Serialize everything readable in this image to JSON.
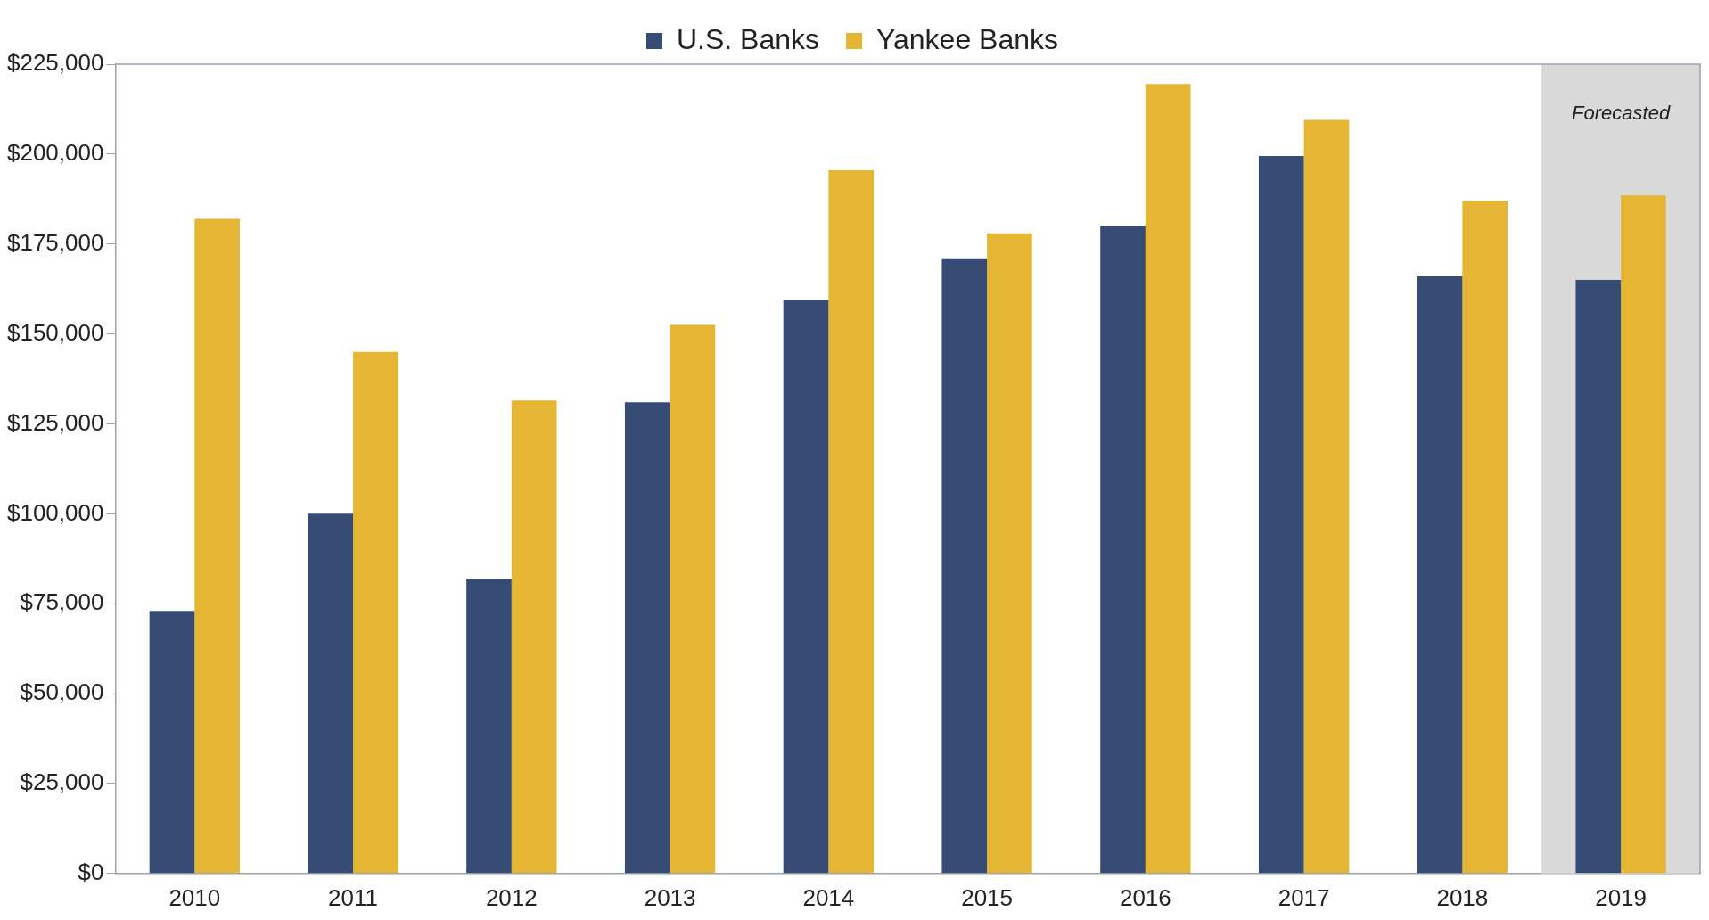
{
  "chart_data": {
    "type": "bar",
    "categories": [
      "2010",
      "2011",
      "2012",
      "2013",
      "2014",
      "2015",
      "2016",
      "2017",
      "2018",
      "2019"
    ],
    "series": [
      {
        "name": "U.S. Banks",
        "color": "#374c74",
        "values": [
          73000,
          100000,
          82000,
          131000,
          159500,
          171000,
          180000,
          199500,
          166000,
          165000
        ]
      },
      {
        "name": "Yankee Banks",
        "color": "#e5b534",
        "values": [
          182000,
          145000,
          131500,
          152500,
          195500,
          178000,
          219500,
          209500,
          187000,
          188500
        ]
      }
    ],
    "ylim": [
      0,
      225000
    ],
    "yticks": [
      {
        "value": 0,
        "label": "$0"
      },
      {
        "value": 25000,
        "label": "$25,000"
      },
      {
        "value": 50000,
        "label": "$50,000"
      },
      {
        "value": 75000,
        "label": "$75,000"
      },
      {
        "value": 100000,
        "label": "$100,000"
      },
      {
        "value": 125000,
        "label": "$125,000"
      },
      {
        "value": 150000,
        "label": "$150,000"
      },
      {
        "value": 175000,
        "label": "$175,000"
      },
      {
        "value": 200000,
        "label": "$200,000"
      },
      {
        "value": 225000,
        "label": "$225,000"
      }
    ],
    "bands": [
      {
        "axis": "x",
        "from": "2019",
        "to": "2019",
        "label": "Forecasted",
        "color": "#d9d9d9"
      }
    ],
    "grid": false,
    "legend": "top"
  }
}
